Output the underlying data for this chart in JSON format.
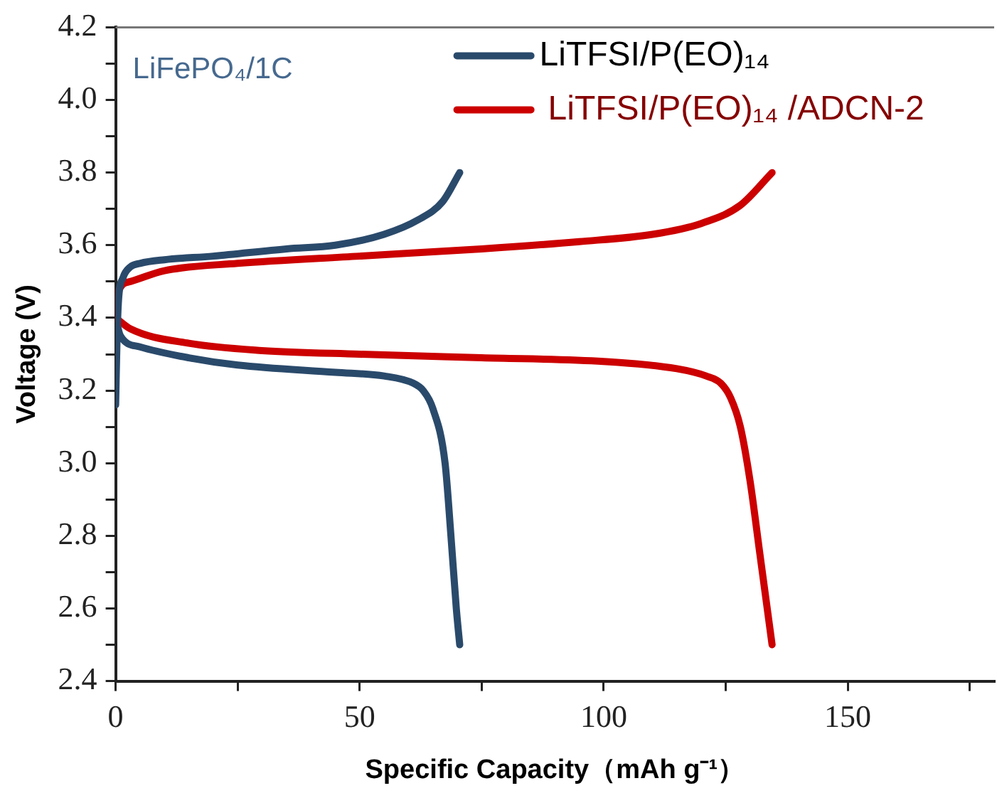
{
  "chart_data": {
    "type": "line",
    "xlabel": "Specific Capacity（mAh g⁻¹）",
    "ylabel": "Voltage (V)",
    "annotations": [
      "LiFePO₄/1C"
    ],
    "xlim": [
      0,
      180
    ],
    "xticks": [
      0,
      {
        "value": 25,
        "label": null
      },
      50,
      {
        "value": 75,
        "label": null
      },
      100,
      {
        "value": 125,
        "label": null
      },
      150,
      {
        "value": 175,
        "label": null
      }
    ],
    "ylim": [
      2.4,
      4.2
    ],
    "yticks": [
      2.4,
      {
        "value": 2.5,
        "label": null
      },
      2.6,
      {
        "value": 2.7,
        "label": null
      },
      2.8,
      {
        "value": 2.9,
        "label": null
      },
      {
        "value": 3.0,
        "label": "3.0"
      },
      {
        "value": 3.1,
        "label": null
      },
      3.2,
      {
        "value": 3.3,
        "label": null
      },
      3.4,
      {
        "value": 3.5,
        "label": null
      },
      3.6,
      {
        "value": 3.7,
        "label": null
      },
      3.8,
      {
        "value": 3.9,
        "label": null
      },
      {
        "value": 4.0,
        "label": "4.0"
      },
      {
        "value": 4.1,
        "label": null
      },
      4.2
    ],
    "grid": false,
    "legend": "top right",
    "marker": "none",
    "line_style": "solid",
    "series": [
      {
        "name": "LiTFSI/P(EO)₁₄",
        "color": "#2a4a6b",
        "x": [
          0,
          0.3,
          0.6,
          1.5,
          3,
          5,
          10,
          20,
          35,
          45,
          55,
          62,
          67,
          70.5,
          null,
          0,
          1,
          5,
          15,
          25,
          45,
          55,
          61,
          63,
          65,
          67.5,
          68.7,
          69.8,
          70.5
        ],
        "values": [
          3.16,
          3.35,
          3.45,
          3.51,
          3.54,
          3.55,
          3.56,
          3.57,
          3.59,
          3.6,
          3.63,
          3.67,
          3.72,
          3.8,
          null,
          3.4,
          3.35,
          3.32,
          3.29,
          3.27,
          3.25,
          3.24,
          3.22,
          3.2,
          3.15,
          3.0,
          2.8,
          2.6,
          2.5
        ]
      },
      {
        "name": "LiTFSI/P(EO)₁₄ /ADCN-2",
        "color": "#cc0000",
        "x": [
          0,
          0.5,
          3,
          10,
          25,
          50,
          75,
          95,
          110,
          120,
          128,
          134.5,
          null,
          0,
          3,
          15,
          30,
          50,
          75,
          100,
          115,
          121,
          124,
          126,
          128,
          130,
          132,
          134.5
        ],
        "values": [
          3.4,
          3.47,
          3.5,
          3.53,
          3.55,
          3.57,
          3.59,
          3.61,
          3.63,
          3.66,
          3.71,
          3.8,
          null,
          3.4,
          3.37,
          3.33,
          3.31,
          3.3,
          3.29,
          3.28,
          3.26,
          3.24,
          3.22,
          3.18,
          3.1,
          2.95,
          2.75,
          2.5
        ]
      }
    ]
  }
}
